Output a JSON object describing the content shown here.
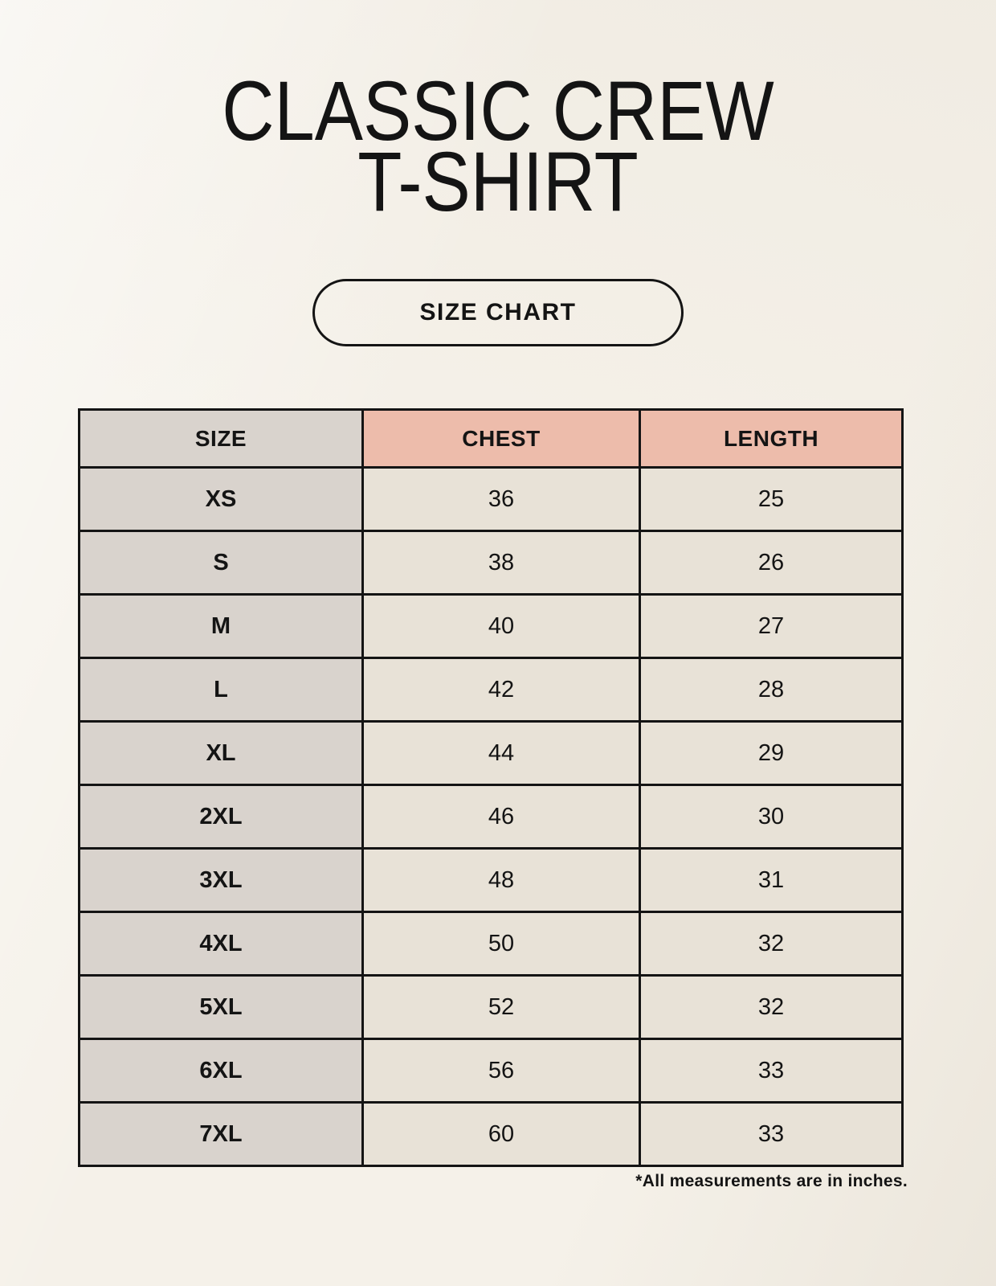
{
  "header": {
    "title_line1": "CLASSIC CREW",
    "title_line2": "T-SHIRT",
    "button_label": "SIZE CHART"
  },
  "colors": {
    "background": "#f5f1e9",
    "size_column": "#d9d3cd",
    "header_accent": "#edbcab",
    "data_cell": "#e8e2d7",
    "border": "#141414",
    "text": "#141414"
  },
  "chart_data": {
    "type": "table",
    "title": "CLASSIC CREW T-SHIRT",
    "columns": [
      "SIZE",
      "CHEST",
      "LENGTH"
    ],
    "rows": [
      [
        "XS",
        "36",
        "25"
      ],
      [
        "S",
        "38",
        "26"
      ],
      [
        "M",
        "40",
        "27"
      ],
      [
        "L",
        "42",
        "28"
      ],
      [
        "XL",
        "44",
        "29"
      ],
      [
        "2XL",
        "46",
        "30"
      ],
      [
        "3XL",
        "48",
        "31"
      ],
      [
        "4XL",
        "50",
        "32"
      ],
      [
        "5XL",
        "52",
        "32"
      ],
      [
        "6XL",
        "56",
        "33"
      ],
      [
        "7XL",
        "60",
        "33"
      ]
    ],
    "note": "*All measurements are in inches.",
    "units": "inches"
  }
}
